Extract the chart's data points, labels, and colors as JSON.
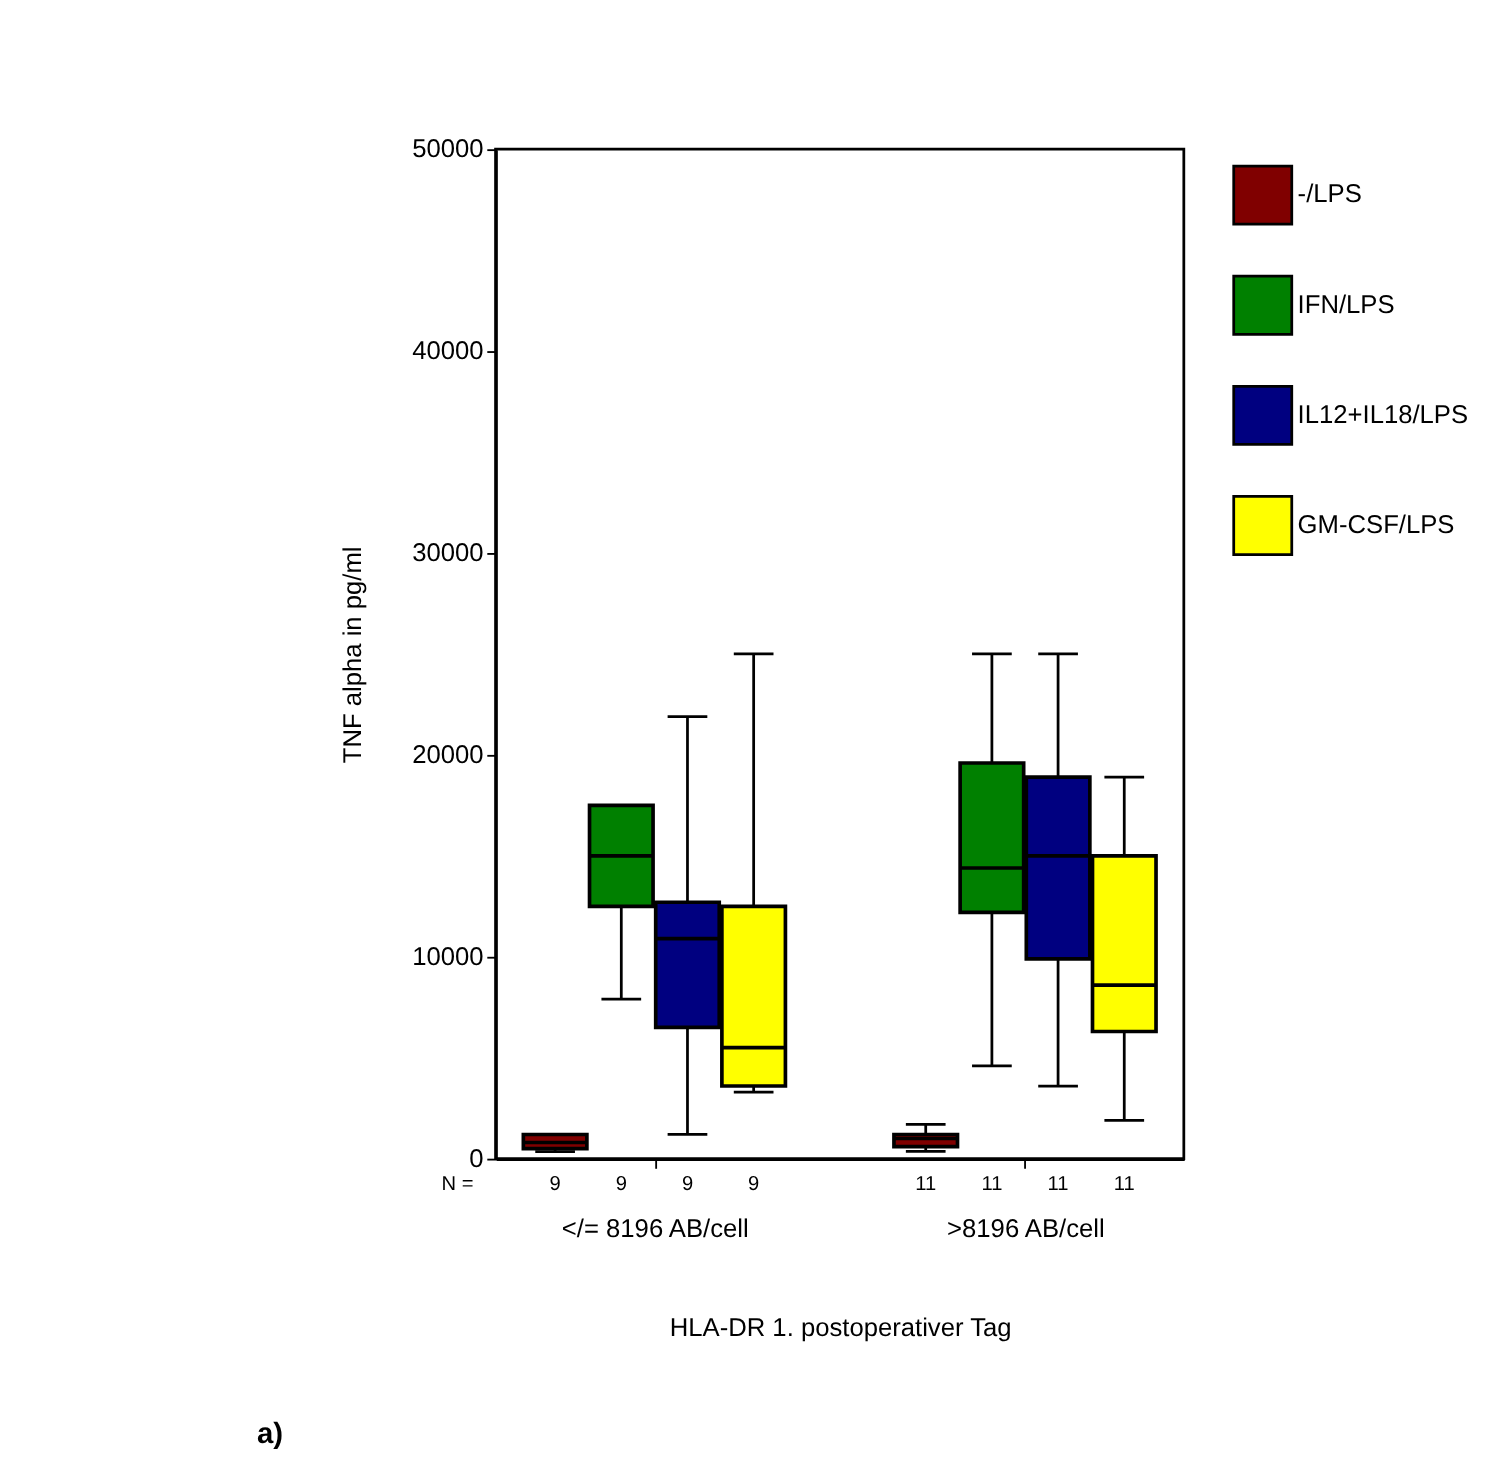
{
  "chart_data": {
    "type": "box",
    "categories": [
      "</= 8196 AB/cell",
      ">8196 AB/cell"
    ],
    "xlabel": "HLA-DR 1. postoperativer Tag",
    "ylabel": "TNF alpha in pg/ml",
    "ylim": [
      0,
      50000
    ],
    "yticks": [
      0,
      10000,
      20000,
      30000,
      40000,
      50000
    ],
    "grid": false,
    "legend": "right",
    "series": [
      {
        "name": "-/LPS",
        "color": "#800000",
        "boxes": [
          {
            "low": 350,
            "q1": 500,
            "median": 800,
            "q3": 1200,
            "high": 1200
          },
          {
            "low": 360,
            "q1": 600,
            "median": 1000,
            "q3": 1200,
            "high": 1700
          }
        ]
      },
      {
        "name": "IFN/LPS",
        "color": "#008000",
        "boxes": [
          {
            "low": 7900,
            "q1": 12500,
            "median": 15000,
            "q3": 17500,
            "high": 17500
          },
          {
            "low": 4600,
            "q1": 12200,
            "median": 14400,
            "q3": 19600,
            "high": 25000
          }
        ]
      },
      {
        "name": "IL12+IL18/LPS",
        "color": "#000080",
        "boxes": [
          {
            "low": 1200,
            "q1": 6500,
            "median": 10900,
            "q3": 12700,
            "high": 21900
          },
          {
            "low": 3600,
            "q1": 9900,
            "median": 15000,
            "q3": 18900,
            "high": 25000
          }
        ]
      },
      {
        "name": "GM-CSF/LPS",
        "color": "#ffff00",
        "boxes": [
          {
            "low": 3300,
            "q1": 3600,
            "median": 5500,
            "q3": 12500,
            "high": 25000
          },
          {
            "low": 1900,
            "q1": 6300,
            "median": 8600,
            "q3": 15000,
            "high": 18900
          }
        ]
      }
    ],
    "annotations": [
      "a)",
      "N =",
      "9",
      "9",
      "9",
      "9",
      "11",
      "11",
      "11",
      "11"
    ]
  }
}
